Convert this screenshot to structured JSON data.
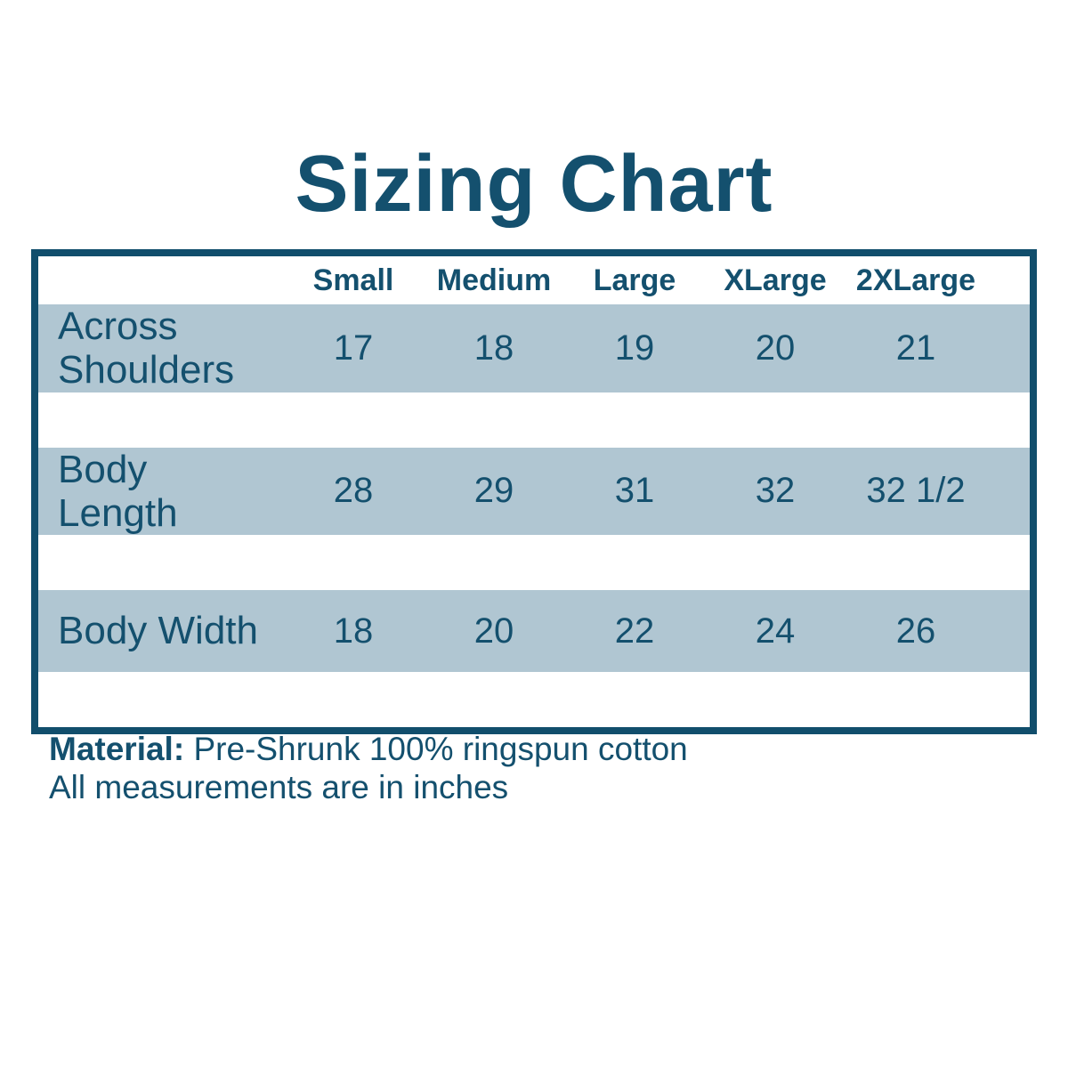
{
  "chart_data": {
    "type": "table",
    "title": "Sizing Chart",
    "columns": [
      "Small",
      "Medium",
      "Large",
      "XLarge",
      "2XLarge"
    ],
    "rows": [
      {
        "label": "Across Shoulders",
        "values": [
          "17",
          "18",
          "19",
          "20",
          "21"
        ]
      },
      {
        "label": "Body Length",
        "values": [
          "28",
          "29",
          "31",
          "32",
          "32 1/2"
        ]
      },
      {
        "label": "Body Width",
        "values": [
          "18",
          "20",
          "22",
          "24",
          "26"
        ]
      }
    ],
    "units": "inches",
    "annotations": {
      "material_label": "Material:",
      "material_text": "Pre-Shrunk 100% ringspun cotton",
      "units_note": "All measurements are in inches"
    }
  },
  "colors": {
    "accent": "#14506e",
    "table_border": "#114e6c",
    "row_background": "#b0c6d2",
    "page_background": "#ffffff"
  }
}
